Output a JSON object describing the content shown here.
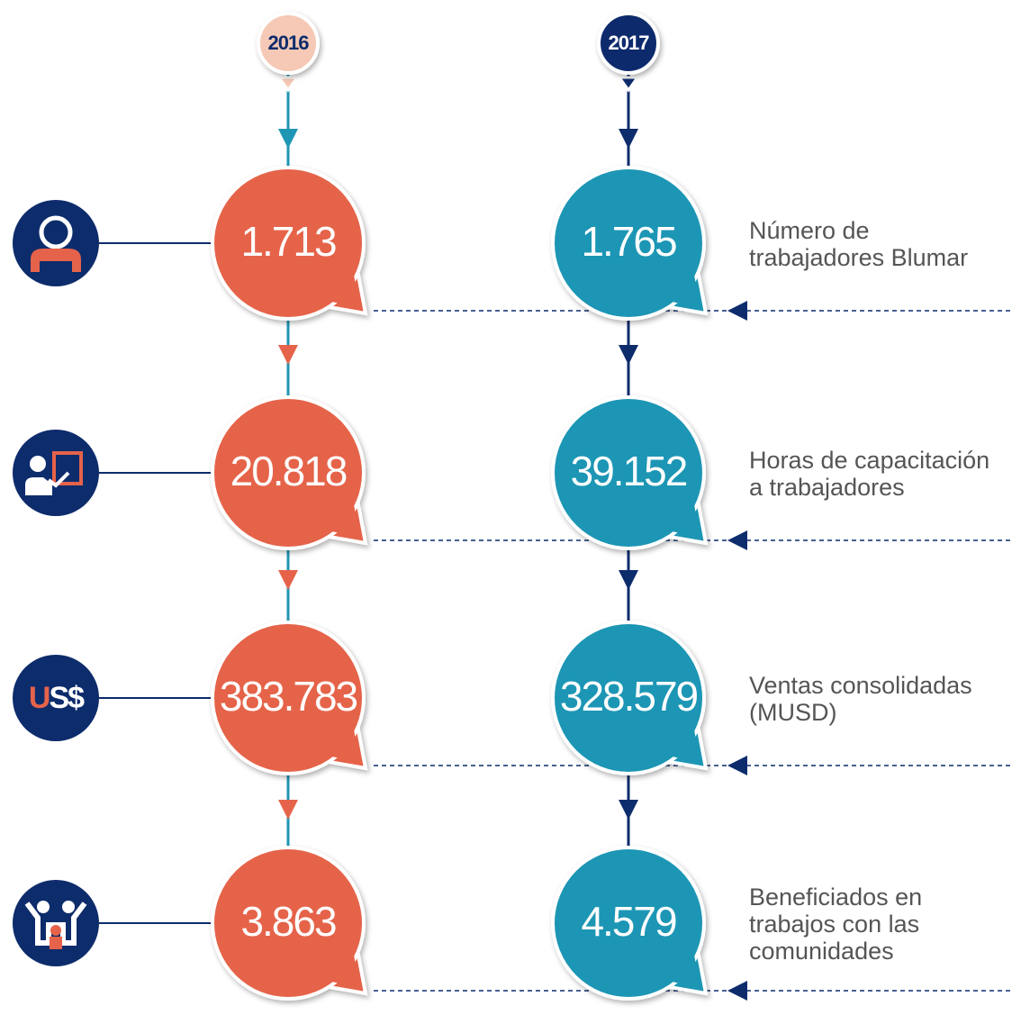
{
  "years": [
    "2016",
    "2017"
  ],
  "rows": [
    {
      "label": [
        "Número de",
        "trabajadores Blumar"
      ],
      "values": [
        "1.713",
        "1.765"
      ]
    },
    {
      "label": [
        "Horas de capacitación",
        "a trabajadores"
      ],
      "values": [
        "20.818",
        "39.152"
      ]
    },
    {
      "label": [
        "Ventas consolidadas",
        "(MUSD)"
      ],
      "values": [
        "383.783",
        "328.579"
      ],
      "icon_text": [
        "U",
        "S$"
      ]
    },
    {
      "label": [
        "Beneficiados en",
        "trabajos con las",
        "comunidades"
      ],
      "values": [
        "3.863",
        "4.579"
      ]
    }
  ]
}
